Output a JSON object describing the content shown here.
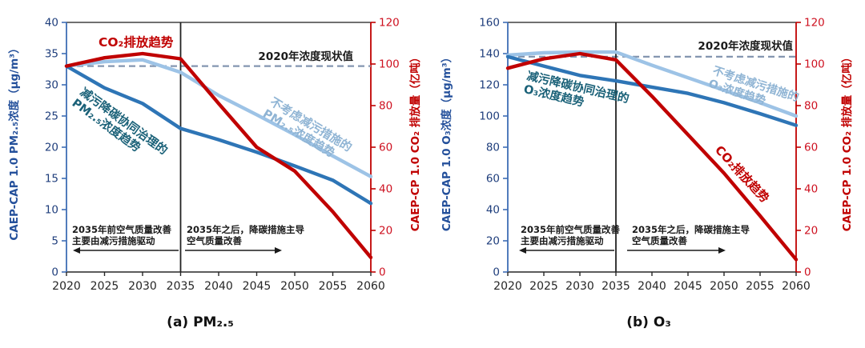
{
  "chart_data": [
    {
      "panel": "a",
      "type": "line",
      "title": "(a)  PM₂.₅",
      "x": [
        2020,
        2025,
        2030,
        2035,
        2040,
        2045,
        2050,
        2055,
        2060
      ],
      "left_axis": {
        "label": "CAEP-CAP 1.0 PM₂.₅浓度（μg/m³）",
        "min": 0,
        "max": 40,
        "step": 5,
        "color": "#3E6DB5",
        "text_color": "#1F3E7C"
      },
      "right_axis": {
        "label": "CAEP-CP 1.0 CO₂ 排放量（亿吨）",
        "min": 0,
        "max": 120,
        "step": 20,
        "color": "#C00000",
        "text_color": "#CE1120"
      },
      "x_axis_color": "#262626",
      "series": [
        {
          "name": "减污降碳协同治理的PM₂.₅浓度趋势",
          "label_lines": [
            "减污降碳协同治理的",
            "PM₂.₅浓度趋势"
          ],
          "axis": "left",
          "color": "#2E75B6",
          "label_color": "#1A6178",
          "values": [
            33,
            29.5,
            27,
            23,
            21.2,
            19.2,
            17,
            14.7,
            11
          ]
        },
        {
          "name": "不考虑减污措施的PM₂.₅浓度趋势",
          "label_lines": [
            "不考虑减污措施的",
            "PM₂.₅浓度趋势"
          ],
          "axis": "left",
          "color": "#9DC3E6",
          "label_color": "#8FB4D4",
          "values": [
            33,
            33.7,
            34,
            32,
            28.3,
            25.2,
            22,
            18.6,
            15.3
          ]
        },
        {
          "name": "CO₂排放趋势",
          "label_lines": [
            "CO₂排放趋势"
          ],
          "axis": "right",
          "color": "#C00000",
          "label_color": "#C00000",
          "values": [
            99,
            103,
            105,
            102.5,
            81,
            60,
            48.5,
            29,
            7
          ]
        }
      ],
      "reference_line": {
        "label": "2020年浓度现状值",
        "value": 33,
        "axis": "left",
        "color": "#8496B0"
      },
      "milestone_year": 2035,
      "annotations": {
        "pre2035": [
          "2035年前空气质量改善",
          "主要由减污措施驱动"
        ],
        "post2035": [
          "2035年之后，降碳措施主导",
          "空气质量改善"
        ]
      }
    },
    {
      "panel": "b",
      "type": "line",
      "title": "(b)  O₃",
      "x": [
        2020,
        2025,
        2030,
        2035,
        2040,
        2045,
        2050,
        2055,
        2060
      ],
      "left_axis": {
        "label": "CAEP-CAP 1.0 O₃浓度（μg/m³）",
        "min": 0,
        "max": 160,
        "step": 20,
        "color": "#3E6DB5",
        "text_color": "#1F3E7C"
      },
      "right_axis": {
        "label": "CAEP-CP 1.0 CO₂ 排放量（亿吨）",
        "min": 0,
        "max": 120,
        "step": 20,
        "color": "#C00000",
        "text_color": "#CE1120"
      },
      "x_axis_color": "#262626",
      "series": [
        {
          "name": "减污降碳协同治理的O₃浓度趋势",
          "label_lines": [
            "减污降碳协同治理的",
            "O₃浓度趋势"
          ],
          "axis": "left",
          "color": "#2E75B6",
          "label_color": "#1A6178",
          "values": [
            138,
            132,
            126,
            122.5,
            118.5,
            114.5,
            108.5,
            101.5,
            94
          ]
        },
        {
          "name": "不考虑减污措施的O₃浓度趋势",
          "label_lines": [
            "不考虑减污措施的",
            "O₃浓度趋势"
          ],
          "axis": "left",
          "color": "#9DC3E6",
          "label_color": "#8FB4D4",
          "values": [
            139,
            140.5,
            141,
            141,
            132.5,
            124.5,
            116.5,
            108.5,
            100
          ]
        },
        {
          "name": "CO₂排放趋势",
          "label_lines": [
            "CO₂排放趋势"
          ],
          "axis": "right",
          "color": "#C00000",
          "label_color": "#C00000",
          "values": [
            98,
            102.5,
            105,
            102,
            84.5,
            66,
            47.5,
            27,
            6
          ]
        }
      ],
      "reference_line": {
        "label": "2020年浓度现状值",
        "value": 138,
        "axis": "left",
        "color": "#8496B0"
      },
      "milestone_year": 2035,
      "annotations": {
        "pre2035": [
          "2035年前空气质量改善",
          "主要由减污措施驱动"
        ],
        "post2035": [
          "2035年之后，降碳措施主导",
          "空气质量改善"
        ]
      }
    }
  ]
}
